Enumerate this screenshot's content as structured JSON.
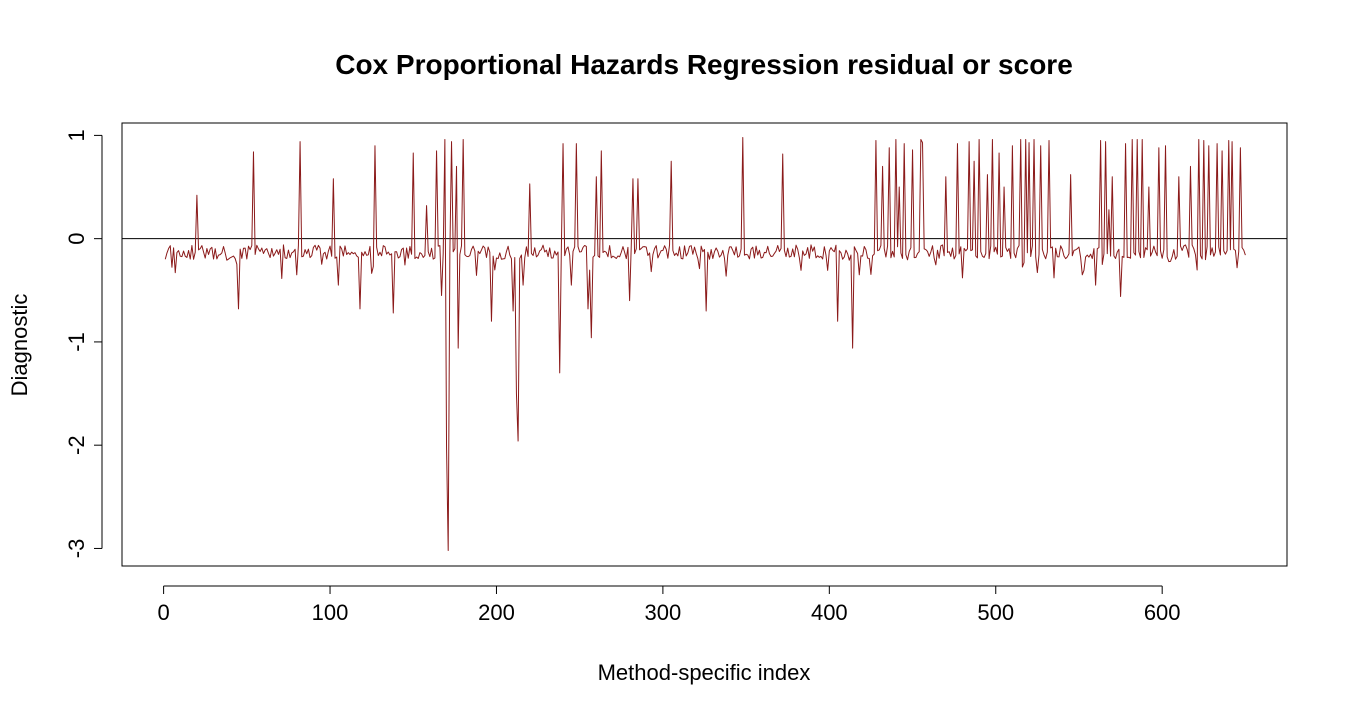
{
  "chart_data": {
    "type": "line",
    "title": "Cox Proportional Hazards Regression residual or score",
    "xlabel": "Method-specific index",
    "ylabel": "Diagnostic",
    "xlim": [
      -25,
      675
    ],
    "ylim": [
      -3.17,
      1.12
    ],
    "xticks": [
      0,
      100,
      200,
      300,
      400,
      500,
      600
    ],
    "xtick_labels": [
      "0",
      "100",
      "200",
      "300",
      "400",
      "500",
      "600"
    ],
    "yticks": [
      -3,
      -2,
      -1,
      0,
      1
    ],
    "ytick_labels": [
      "-3",
      "-2",
      "-1",
      "0",
      "1"
    ],
    "reference_line": 0,
    "reference_line_color": "#000000",
    "grid": false,
    "legend": "none",
    "series": [
      {
        "color": "#8b1a1a",
        "n_points": 650,
        "baseline": -0.1,
        "spikes": [
          [
            20,
            0.42
          ],
          [
            45,
            -0.68
          ],
          [
            54,
            0.84
          ],
          [
            80,
            -0.35
          ],
          [
            82,
            0.94
          ],
          [
            102,
            0.58
          ],
          [
            105,
            -0.45
          ],
          [
            118,
            -0.68
          ],
          [
            127,
            0.9
          ],
          [
            138,
            -0.72
          ],
          [
            150,
            0.83
          ],
          [
            158,
            0.32
          ],
          [
            164,
            0.85
          ],
          [
            167,
            -0.55
          ],
          [
            169,
            0.96
          ],
          [
            170,
            -2.02
          ],
          [
            171,
            -3.02
          ],
          [
            173,
            0.94
          ],
          [
            176,
            0.7
          ],
          [
            177,
            -1.06
          ],
          [
            180,
            0.96
          ],
          [
            197,
            -0.8
          ],
          [
            210,
            -0.7
          ],
          [
            212,
            -1.5
          ],
          [
            213,
            -1.96
          ],
          [
            216,
            -0.45
          ],
          [
            220,
            0.53
          ],
          [
            238,
            -1.3
          ],
          [
            240,
            0.92
          ],
          [
            245,
            -0.45
          ],
          [
            248,
            0.92
          ],
          [
            255,
            -0.68
          ],
          [
            257,
            -0.96
          ],
          [
            260,
            0.6
          ],
          [
            263,
            0.85
          ],
          [
            280,
            -0.6
          ],
          [
            282,
            0.58
          ],
          [
            285,
            0.58
          ],
          [
            305,
            0.75
          ],
          [
            326,
            -0.7
          ],
          [
            348,
            0.98
          ],
          [
            372,
            0.82
          ],
          [
            405,
            -0.8
          ],
          [
            414,
            -1.06
          ],
          [
            418,
            -0.35
          ],
          [
            428,
            0.95
          ],
          [
            432,
            0.7
          ],
          [
            436,
            0.88
          ],
          [
            440,
            0.96
          ],
          [
            442,
            0.5
          ],
          [
            445,
            0.92
          ],
          [
            450,
            0.86
          ],
          [
            455,
            0.96
          ],
          [
            456,
            0.93
          ],
          [
            470,
            0.6
          ],
          [
            477,
            0.92
          ],
          [
            480,
            -0.38
          ],
          [
            484,
            0.94
          ],
          [
            487,
            0.75
          ],
          [
            490,
            0.96
          ],
          [
            495,
            0.62
          ],
          [
            498,
            0.96
          ],
          [
            502,
            0.83
          ],
          [
            505,
            0.5
          ],
          [
            510,
            0.9
          ],
          [
            515,
            0.96
          ],
          [
            518,
            0.96
          ],
          [
            520,
            0.93
          ],
          [
            523,
            0.96
          ],
          [
            527,
            0.9
          ],
          [
            532,
            0.95
          ],
          [
            535,
            -0.38
          ],
          [
            545,
            0.62
          ],
          [
            552,
            -0.35
          ],
          [
            560,
            -0.45
          ],
          [
            563,
            0.95
          ],
          [
            566,
            0.94
          ],
          [
            568,
            0.28
          ],
          [
            570,
            0.6
          ],
          [
            575,
            -0.56
          ],
          [
            578,
            0.92
          ],
          [
            582,
            0.96
          ],
          [
            585,
            0.96
          ],
          [
            588,
            0.96
          ],
          [
            592,
            0.5
          ],
          [
            598,
            0.88
          ],
          [
            602,
            0.9
          ],
          [
            605,
            -0.22
          ],
          [
            610,
            0.6
          ],
          [
            617,
            0.7
          ],
          [
            622,
            0.96
          ],
          [
            625,
            0.95
          ],
          [
            628,
            0.9
          ],
          [
            633,
            0.92
          ],
          [
            636,
            0.85
          ],
          [
            640,
            0.95
          ],
          [
            642,
            0.94
          ],
          [
            647,
            0.88
          ]
        ]
      }
    ]
  }
}
